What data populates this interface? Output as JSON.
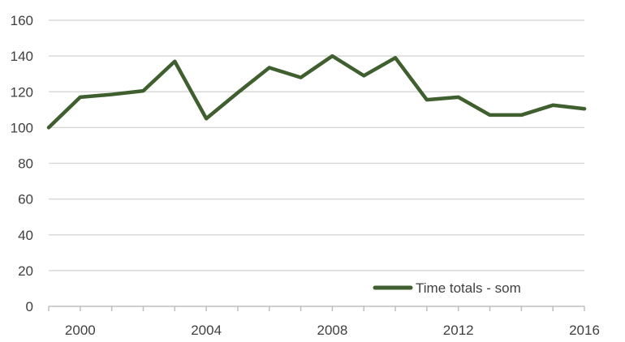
{
  "chart_data": {
    "type": "line",
    "title": "",
    "xlabel": "",
    "ylabel": "",
    "x": [
      1999,
      2000,
      2001,
      2002,
      2003,
      2004,
      2005,
      2006,
      2007,
      2008,
      2009,
      2010,
      2011,
      2012,
      2013,
      2014,
      2015,
      2016
    ],
    "xlim": [
      1999,
      2016
    ],
    "x_tick_labels": [
      "2000",
      "2004",
      "2008",
      "2012",
      "2016"
    ],
    "x_tick_values": [
      2000,
      2004,
      2008,
      2012,
      2016
    ],
    "ylim": [
      0,
      160
    ],
    "y_tick_values": [
      0,
      20,
      40,
      60,
      80,
      100,
      120,
      140,
      160
    ],
    "y_tick_labels": [
      "0",
      "20",
      "40",
      "60",
      "80",
      "100",
      "120",
      "140",
      "160"
    ],
    "grid": "horizontal",
    "legend_position": "bottom-right",
    "series": [
      {
        "name": "Time totals - som",
        "color": "#3f5f2f",
        "values": [
          100,
          117,
          118.5,
          120.5,
          137,
          105,
          119.5,
          133.5,
          128,
          140,
          129,
          139,
          115.5,
          117,
          107,
          107,
          112.5,
          110.5
        ]
      }
    ]
  }
}
